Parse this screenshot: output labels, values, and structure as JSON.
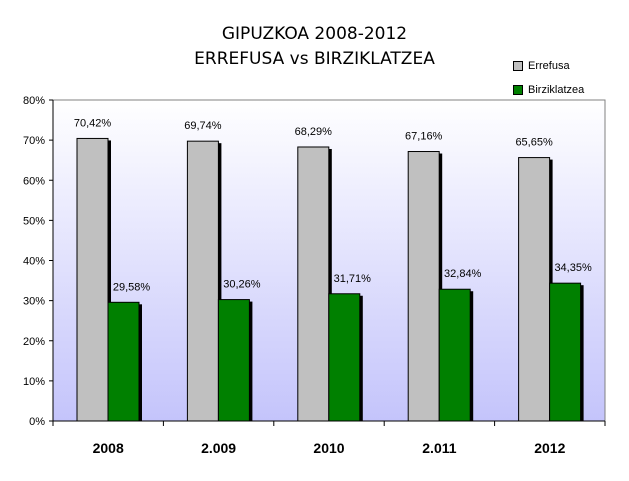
{
  "chart_data": {
    "type": "bar",
    "title": "GIPUZKOA 2008-2012",
    "subtitle": "ERREFUSA vs BIRZIKLATZEA",
    "categories": [
      "2008",
      "2.009",
      "2010",
      "2.011",
      "2012"
    ],
    "series": [
      {
        "name": "Errefusa",
        "color": "#c0c0c0",
        "values": [
          70.42,
          69.74,
          68.29,
          67.16,
          65.65
        ],
        "labels": [
          "70,42%",
          "69,74%",
          "68,29%",
          "67,16%",
          "65,65%"
        ]
      },
      {
        "name": "Birziklatzea",
        "color": "#008000",
        "values": [
          29.58,
          30.26,
          31.71,
          32.84,
          34.35
        ],
        "labels": [
          "29,58%",
          "30,26%",
          "31,71%",
          "32,84%",
          "34,35%"
        ]
      }
    ],
    "ylim": [
      0,
      80
    ],
    "yticks": [
      "0%",
      "10%",
      "20%",
      "30%",
      "40%",
      "50%",
      "60%",
      "70%",
      "80%"
    ],
    "legend_position": "top-right",
    "xlabel": "",
    "ylabel": ""
  }
}
